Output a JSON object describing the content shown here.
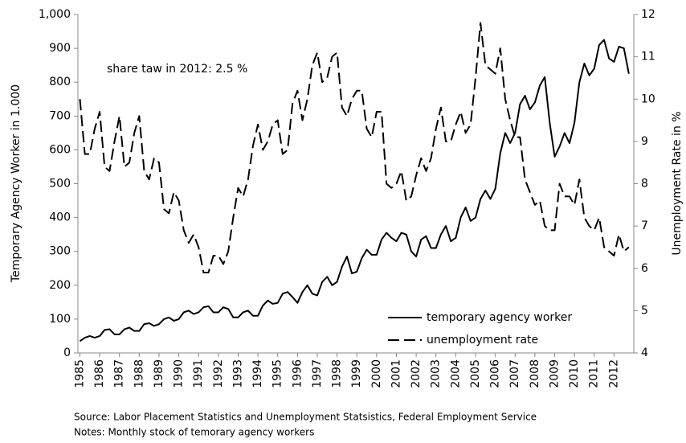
{
  "chart_data": {
    "type": "line",
    "annotation": "share taw in 2012: 2.5 %",
    "y_label": "Temporary Agency Worker in 1.000",
    "y2_label": "Unemployment Rate in %",
    "source": "Source: Labor Placement Statistics and  Unemployment Statsistics,  Federal Employment Service",
    "notes": "Notes:  Monthly stock of temorary agency workers",
    "xlim": [
      1984.9,
      2013.0
    ],
    "xticks": [
      1985,
      1986,
      1987,
      1988,
      1989,
      1990,
      1991,
      1992,
      1993,
      1994,
      1995,
      1996,
      1997,
      1998,
      1999,
      2000,
      2001,
      2002,
      2003,
      2004,
      2005,
      2006,
      2007,
      2008,
      2009,
      2010,
      2011,
      2012
    ],
    "ylim": [
      0,
      1000
    ],
    "yticks": [
      0,
      100,
      200,
      300,
      400,
      500,
      600,
      700,
      800,
      900,
      {
        "value": 1000,
        "label": "1,000"
      }
    ],
    "y2lim": [
      4,
      12
    ],
    "y2ticks": [
      4,
      5,
      6,
      7,
      8,
      9,
      10,
      11,
      12
    ],
    "legend": "lower right",
    "x": [
      1985,
      1985.25,
      1985.5,
      1985.75,
      1986,
      1986.25,
      1986.5,
      1986.75,
      1987,
      1987.25,
      1987.5,
      1987.75,
      1988,
      1988.25,
      1988.5,
      1988.75,
      1989,
      1989.25,
      1989.5,
      1989.75,
      1990,
      1990.25,
      1990.5,
      1990.75,
      1991,
      1991.25,
      1991.5,
      1991.75,
      1992,
      1992.25,
      1992.5,
      1992.75,
      1993,
      1993.25,
      1993.5,
      1993.75,
      1994,
      1994.25,
      1994.5,
      1994.75,
      1995,
      1995.25,
      1995.5,
      1995.75,
      1996,
      1996.25,
      1996.5,
      1996.75,
      1997,
      1997.25,
      1997.5,
      1997.75,
      1998,
      1998.25,
      1998.5,
      1998.75,
      1999,
      1999.25,
      1999.5,
      1999.75,
      2000,
      2000.25,
      2000.5,
      2000.75,
      2001,
      2001.25,
      2001.5,
      2001.75,
      2002,
      2002.25,
      2002.5,
      2002.75,
      2003,
      2003.25,
      2003.5,
      2003.75,
      2004,
      2004.25,
      2004.5,
      2004.75,
      2005,
      2005.25,
      2005.5,
      2005.75,
      2006,
      2006.25,
      2006.5,
      2006.75,
      2007,
      2007.25,
      2007.5,
      2007.75,
      2008,
      2008.25,
      2008.5,
      2008.75,
      2009,
      2009.25,
      2009.5,
      2009.75,
      2010,
      2010.25,
      2010.5,
      2010.75,
      2011,
      2011.25,
      2011.5,
      2011.75,
      2012,
      2012.25,
      2012.5,
      2012.75
    ],
    "series": [
      {
        "name": "temporary agency worker",
        "color": "#000000",
        "line_style": "solid",
        "values": [
          35,
          45,
          50,
          45,
          50,
          68,
          70,
          55,
          55,
          70,
          75,
          65,
          65,
          85,
          88,
          80,
          85,
          100,
          105,
          95,
          100,
          120,
          125,
          115,
          120,
          135,
          138,
          120,
          120,
          135,
          130,
          105,
          105,
          120,
          125,
          110,
          110,
          140,
          155,
          145,
          148,
          175,
          180,
          165,
          148,
          180,
          200,
          175,
          170,
          210,
          225,
          200,
          210,
          255,
          285,
          235,
          240,
          280,
          305,
          290,
          290,
          335,
          355,
          340,
          330,
          355,
          350,
          300,
          285,
          335,
          345,
          310,
          310,
          350,
          375,
          330,
          340,
          400,
          430,
          390,
          400,
          455,
          480,
          455,
          485,
          590,
          650,
          620,
          650,
          735,
          760,
          720,
          740,
          790,
          815,
          680,
          580,
          610,
          650,
          620,
          680,
          800,
          855,
          820,
          840,
          910,
          925,
          870,
          860,
          905,
          900,
          825
        ]
      },
      {
        "name": "unemployment rate",
        "color": "#000000",
        "line_style": "dashed",
        "axis": "y2",
        "values": [
          10.0,
          8.7,
          8.7,
          9.3,
          9.7,
          8.4,
          8.3,
          9.0,
          9.6,
          8.4,
          8.5,
          9.2,
          9.6,
          8.3,
          8.1,
          8.6,
          8.5,
          7.4,
          7.3,
          7.8,
          7.6,
          6.9,
          6.6,
          6.8,
          6.5,
          5.9,
          5.9,
          6.3,
          6.3,
          6.1,
          6.4,
          7.2,
          7.9,
          7.7,
          8.1,
          8.9,
          9.4,
          8.8,
          9.0,
          9.4,
          9.5,
          8.7,
          8.8,
          9.9,
          10.2,
          9.5,
          10.0,
          10.8,
          11.1,
          10.4,
          10.5,
          11.0,
          11.1,
          9.8,
          9.6,
          10.0,
          10.2,
          10.2,
          9.3,
          9.1,
          9.7,
          9.7,
          8.0,
          7.9,
          8.0,
          8.3,
          7.6,
          7.7,
          8.2,
          8.6,
          8.3,
          8.6,
          9.3,
          9.8,
          9.0,
          9.0,
          9.4,
          9.7,
          9.2,
          9.4,
          10.5,
          11.8,
          10.8,
          10.7,
          10.6,
          11.2,
          10.0,
          9.5,
          9.1,
          9.1,
          8.1,
          7.8,
          7.5,
          7.6,
          7.0,
          6.9,
          6.9,
          8.0,
          7.7,
          7.7,
          7.5,
          8.1,
          7.2,
          7.0,
          6.9,
          7.2,
          6.5,
          6.4,
          6.3,
          6.8,
          6.4,
          6.5
        ]
      }
    ]
  }
}
